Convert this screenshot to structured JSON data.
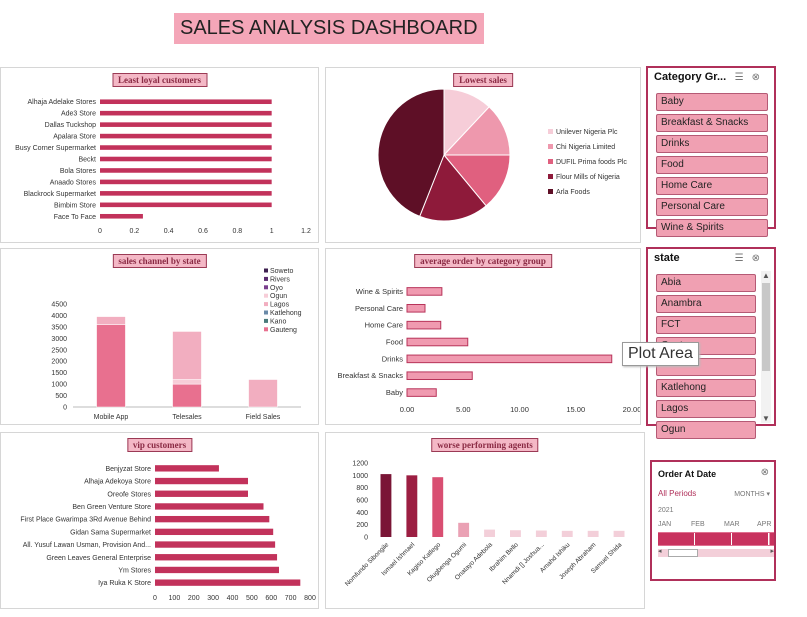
{
  "dashboard": {
    "title": "SALES ANALYSIS DASHBOARD"
  },
  "tooltip": {
    "text": "Plot Area"
  },
  "colors": {
    "accent": "#c2325b",
    "panel_title_bg": "#f4b8c6",
    "slicer_item": "#f0a0b2",
    "slicer_border": "#b0305a"
  },
  "category_slicer": {
    "title": "Category Gr...",
    "items": [
      "Baby",
      "Breakfast & Snacks",
      "Drinks",
      "Food",
      "Home Care",
      "Personal Care",
      "Wine & Spirits"
    ]
  },
  "state_slicer": {
    "title": "state",
    "items": [
      "Abia",
      "Anambra",
      "FCT",
      "Gauteng",
      "",
      "Katlehong",
      "Lagos",
      "Ogun"
    ]
  },
  "timeline": {
    "title": "Order At Date",
    "period": "All Periods",
    "level": "MONTHS",
    "year": "2021",
    "months": [
      "JAN",
      "FEB",
      "MAR",
      "APR"
    ]
  },
  "chart_data": [
    {
      "id": "least_loyal",
      "type": "bar",
      "orientation": "horizontal",
      "title": "Least loyal customers",
      "categories": [
        "Alhaja Adelake Stores",
        "Ade3 Store",
        "Dallas Tuckshop",
        "Apalara Store",
        "Busy Corner Supermarket",
        "Beckt",
        "Bola Stores",
        "Anaado Stores",
        "Blackrock Supermarket",
        "Bimbim Store",
        "Face To Face"
      ],
      "values": [
        1,
        1,
        1,
        1,
        1,
        1,
        1,
        1,
        1,
        1,
        0.25
      ],
      "xlim": [
        0,
        1.2
      ],
      "xticks": [
        "0",
        "0.2",
        "0.4",
        "0.6",
        "0.8",
        "1",
        "1.2"
      ]
    },
    {
      "id": "lowest_sales",
      "type": "pie",
      "title": "Lowest sales",
      "labels": [
        "Unilever Nigeria Plc",
        "Chi Nigeria Limited",
        "DUFIL Prima foods Plc",
        "Flour Mills of Nigeria",
        "Arla Foods"
      ],
      "values": [
        12,
        13,
        14,
        17,
        44
      ],
      "colors": [
        "#f6cdd8",
        "#ee98ad",
        "#e0607f",
        "#8e1a3a",
        "#5e0f26"
      ]
    },
    {
      "id": "sales_channel",
      "type": "bar",
      "stacked": true,
      "title": "sales channel by state",
      "categories": [
        "Mobile App",
        "Telesales",
        "Field Sales"
      ],
      "series": [
        {
          "name": "Soweto",
          "values": [
            0,
            0,
            0
          ],
          "color": "#3d1f4f"
        },
        {
          "name": "Rivers",
          "values": [
            0,
            0,
            0
          ],
          "color": "#5a2a6e"
        },
        {
          "name": "Oyo",
          "values": [
            0,
            0,
            0
          ],
          "color": "#7a3f8e"
        },
        {
          "name": "Ogun",
          "values": [
            0,
            200,
            0
          ],
          "color": "#f7cdd8"
        },
        {
          "name": "Lagos",
          "values": [
            350,
            2100,
            1200
          ],
          "color": "#f2aec0"
        },
        {
          "name": "Katlehong",
          "values": [
            0,
            0,
            0
          ],
          "color": "#6a8aa8"
        },
        {
          "name": "Kano",
          "values": [
            0,
            0,
            0
          ],
          "color": "#4a7a7a"
        },
        {
          "name": "Gauteng",
          "values": [
            3600,
            1000,
            0
          ],
          "color": "#e8708f"
        }
      ],
      "ylim": [
        0,
        4500
      ],
      "yticks": [
        "0",
        "500",
        "1000",
        "1500",
        "2000",
        "2500",
        "3000",
        "3500",
        "4000",
        "4500"
      ]
    },
    {
      "id": "avg_order",
      "type": "bar",
      "orientation": "horizontal",
      "title": "average order by category group",
      "categories": [
        "Wine & Spirits",
        "Personal Care",
        "Home Care",
        "Food",
        "Drinks",
        "Breakfast & Snacks",
        "Baby"
      ],
      "values": [
        3.1,
        1.6,
        3.0,
        5.4,
        18.2,
        5.8,
        2.6
      ],
      "xlim": [
        0,
        20
      ],
      "xticks": [
        "0.00",
        "5.00",
        "10.00",
        "15.00",
        "20.00"
      ]
    },
    {
      "id": "vip_customers",
      "type": "bar",
      "orientation": "horizontal",
      "title": "vip customers",
      "categories": [
        "Benjyzat Store",
        "Alhaja Adekoya Store",
        "Oreofe Stores",
        "Ben Green Venture Store",
        "First Place Gwarimpa 3Rd Avenue Behind",
        "Gidan Sama Supermarket",
        "All. Yusuf Lawan Usman, Provision And...",
        "Green Leaves General Enterprise",
        "Ym Stores",
        "Iya Ruka K Store"
      ],
      "values": [
        330,
        480,
        480,
        560,
        590,
        610,
        620,
        630,
        640,
        750
      ],
      "xlim": [
        0,
        800
      ],
      "xticks": [
        "0",
        "100",
        "200",
        "300",
        "400",
        "500",
        "600",
        "700",
        "800"
      ]
    },
    {
      "id": "worse_agents",
      "type": "bar",
      "title": "worse performing agents",
      "categories": [
        "Nomfundo Sibongile",
        "Ismael Ishmael",
        "Kagiso Katlego",
        "Olugbenga Ogumi",
        "Onatayo Adebola",
        "Ibrahim Bello",
        "Nnamdi [] Joshua...",
        "Amahd Ishiku",
        "Joseph Abraham",
        "Samuel Shida"
      ],
      "values": [
        1020,
        1000,
        970,
        230,
        120,
        110,
        105,
        100,
        100,
        100
      ],
      "colors": [
        "#7a1536",
        "#9c1e42",
        "#d94f72",
        "#eaa1b4",
        "#f3cfd9",
        "#f3cfd9",
        "#f3cfd9",
        "#f3cfd9",
        "#f3cfd9",
        "#f3cfd9"
      ],
      "ylim": [
        0,
        1200
      ],
      "yticks": [
        "0",
        "200",
        "400",
        "600",
        "800",
        "1000",
        "1200"
      ]
    }
  ]
}
